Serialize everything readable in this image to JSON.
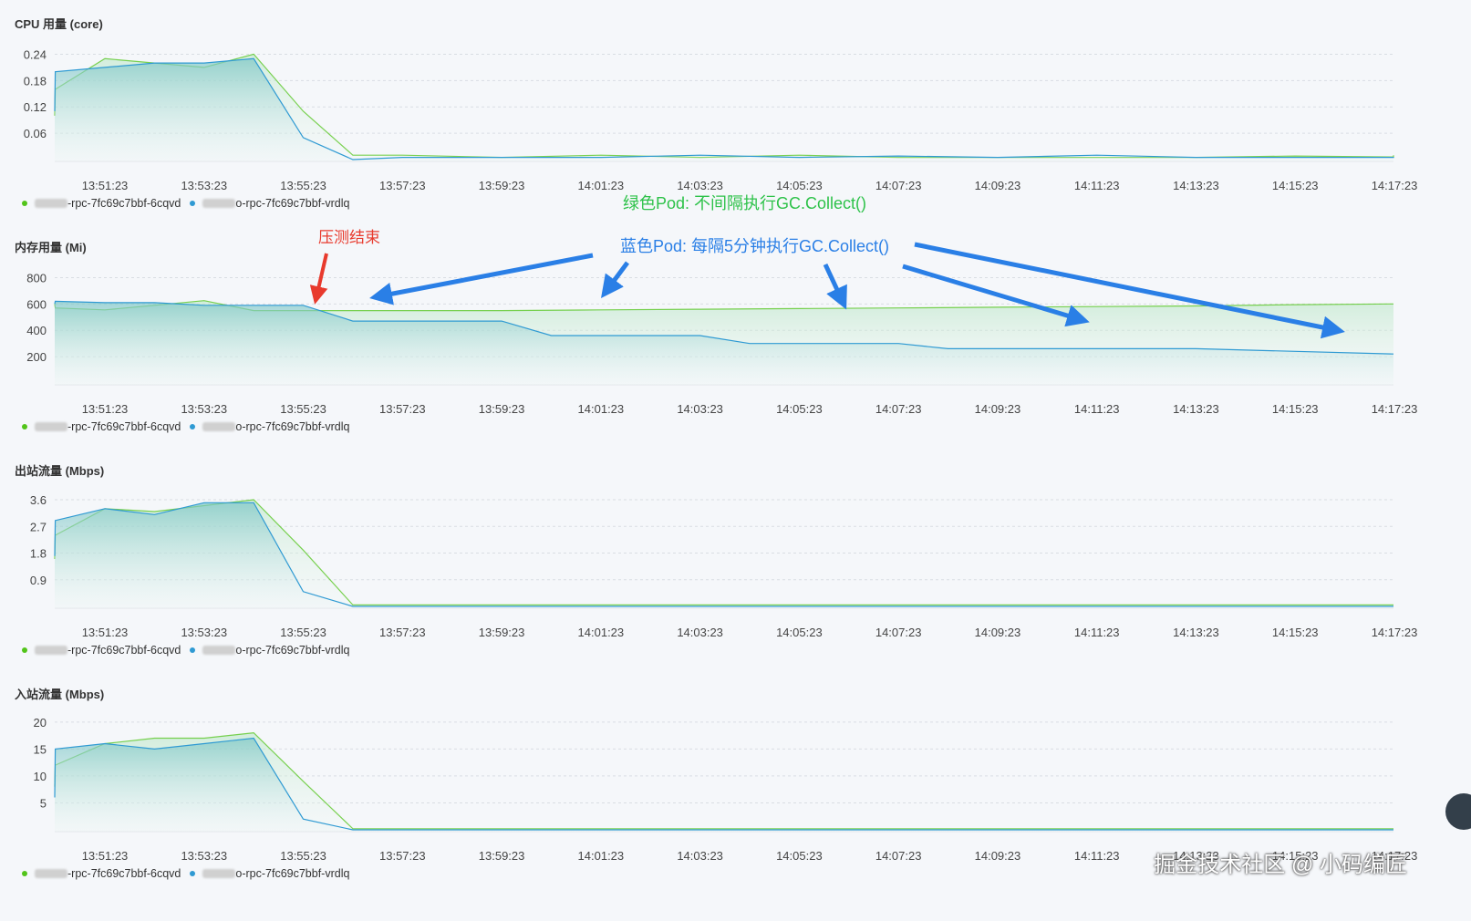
{
  "legend": {
    "series1": "-rpc-7fc69c7bbf-6cqvd",
    "series2": "o-rpc-7fc69c7bbf-vrdlq",
    "color1": "#52c41a",
    "color2": "#2f9ad3"
  },
  "annotations": {
    "green_label": "绿色Pod: 不间隔执行GC.Collect()",
    "blue_label": "蓝色Pod: 每隔5分钟执行GC.Collect()",
    "red_label": "压测结束",
    "green_color": "#2ec24a",
    "blue_color": "#2a7fe6",
    "red_color": "#e83a2d"
  },
  "watermark": "掘金技术社区 @ 小码编匠",
  "chart_data": [
    {
      "type": "area",
      "title": "CPU 用量 (core)",
      "x": [
        "13:51:23",
        "13:53:23",
        "13:55:23",
        "13:57:23",
        "13:59:23",
        "14:01:23",
        "14:03:23",
        "14:05:23",
        "14:07:23",
        "14:09:23",
        "14:11:23",
        "14:13:23",
        "14:15:23",
        "14:17:23"
      ],
      "yticks": [
        0.24,
        0.18,
        0.12,
        0.06
      ],
      "ylim": [
        0,
        0.27
      ],
      "grid": true,
      "series": [
        {
          "name": "-rpc-7fc69c7bbf-6cqvd",
          "points": [
            [
              -1.0,
              0.1
            ],
            [
              -0.5,
              0.16
            ],
            [
              0.0,
              0.23
            ],
            [
              0.5,
              0.22
            ],
            [
              1.0,
              0.21
            ],
            [
              1.5,
              0.24
            ],
            [
              2.0,
              0.11
            ],
            [
              2.5,
              0.01
            ],
            [
              3,
              0.01
            ],
            [
              4,
              0.005
            ],
            [
              5,
              0.01
            ],
            [
              6,
              0.005
            ],
            [
              7,
              0.01
            ],
            [
              8,
              0.005
            ],
            [
              9,
              0.005
            ],
            [
              10,
              0.005
            ],
            [
              11,
              0.005
            ],
            [
              12,
              0.008
            ],
            [
              13,
              0.006
            ],
            [
              13.5,
              0.01
            ]
          ]
        },
        {
          "name": "o-rpc-7fc69c7bbf-vrdlq",
          "points": [
            [
              -1.0,
              0.11
            ],
            [
              -0.5,
              0.2
            ],
            [
              0.0,
              0.21
            ],
            [
              0.5,
              0.22
            ],
            [
              1.0,
              0.22
            ],
            [
              1.5,
              0.23
            ],
            [
              2.0,
              0.05
            ],
            [
              2.5,
              0.0
            ],
            [
              3,
              0.005
            ],
            [
              4,
              0.005
            ],
            [
              5,
              0.005
            ],
            [
              6,
              0.01
            ],
            [
              7,
              0.005
            ],
            [
              8,
              0.008
            ],
            [
              9,
              0.005
            ],
            [
              10,
              0.01
            ],
            [
              11,
              0.005
            ],
            [
              12,
              0.005
            ],
            [
              13,
              0.005
            ],
            [
              13.5,
              0.006
            ]
          ]
        }
      ]
    },
    {
      "type": "area",
      "title": "内存用量 (Mi)",
      "x": [
        "13:51:23",
        "13:53:23",
        "13:55:23",
        "13:57:23",
        "13:59:23",
        "14:01:23",
        "14:03:23",
        "14:05:23",
        "14:07:23",
        "14:09:23",
        "14:11:23",
        "14:13:23",
        "14:15:23",
        "14:17:23"
      ],
      "yticks": [
        800,
        600,
        400,
        200
      ],
      "ylim": [
        0,
        900
      ],
      "grid": true,
      "series": [
        {
          "name": "-rpc-7fc69c7bbf-6cqvd",
          "points": [
            [
              -1.0,
              600
            ],
            [
              -0.5,
              570
            ],
            [
              0.0,
              555
            ],
            [
              0.5,
              590
            ],
            [
              1.0,
              625
            ],
            [
              1.5,
              550
            ],
            [
              2.0,
              550
            ],
            [
              2.5,
              550
            ],
            [
              3,
              550
            ],
            [
              4,
              550
            ],
            [
              5,
              555
            ],
            [
              6,
              560
            ],
            [
              7,
              565
            ],
            [
              8,
              570
            ],
            [
              9,
              575
            ],
            [
              10,
              580
            ],
            [
              11,
              585
            ],
            [
              12,
              595
            ],
            [
              13,
              600
            ],
            [
              13.5,
              600
            ]
          ]
        },
        {
          "name": "o-rpc-7fc69c7bbf-vrdlq",
          "points": [
            [
              -1.0,
              600
            ],
            [
              -0.5,
              620
            ],
            [
              0.0,
              610
            ],
            [
              0.5,
              610
            ],
            [
              1.0,
              590
            ],
            [
              1.5,
              590
            ],
            [
              2.0,
              590
            ],
            [
              2.5,
              470
            ],
            [
              3,
              470
            ],
            [
              4,
              470
            ],
            [
              4.5,
              360
            ],
            [
              5,
              360
            ],
            [
              6,
              360
            ],
            [
              6.5,
              300
            ],
            [
              7,
              300
            ],
            [
              8,
              300
            ],
            [
              8.5,
              260
            ],
            [
              9,
              260
            ],
            [
              10,
              260
            ],
            [
              11,
              260
            ],
            [
              13.5,
              220
            ]
          ]
        }
      ]
    },
    {
      "type": "area",
      "title": "出站流量 (Mbps)",
      "x": [
        "13:51:23",
        "13:53:23",
        "13:55:23",
        "13:57:23",
        "13:59:23",
        "14:01:23",
        "14:03:23",
        "14:05:23",
        "14:07:23",
        "14:09:23",
        "14:11:23",
        "14:13:23",
        "14:15:23",
        "14:17:23"
      ],
      "yticks": [
        3.6,
        2.7,
        1.8,
        0.9
      ],
      "ylim": [
        0,
        4.0
      ],
      "grid": true,
      "series": [
        {
          "name": "-rpc-7fc69c7bbf-6cqvd",
          "points": [
            [
              -1.0,
              1.6
            ],
            [
              -0.5,
              2.4
            ],
            [
              0.0,
              3.3
            ],
            [
              0.5,
              3.2
            ],
            [
              1.0,
              3.4
            ],
            [
              1.5,
              3.6
            ],
            [
              2.0,
              1.9
            ],
            [
              2.5,
              0.05
            ],
            [
              3,
              0.05
            ],
            [
              4,
              0.05
            ],
            [
              5,
              0.05
            ],
            [
              6,
              0.05
            ],
            [
              7,
              0.05
            ],
            [
              8,
              0.05
            ],
            [
              9,
              0.05
            ],
            [
              10,
              0.05
            ],
            [
              11,
              0.05
            ],
            [
              12,
              0.05
            ],
            [
              13,
              0.05
            ],
            [
              13.5,
              0.05
            ]
          ]
        },
        {
          "name": "o-rpc-7fc69c7bbf-vrdlq",
          "points": [
            [
              -1.0,
              1.7
            ],
            [
              -0.5,
              2.9
            ],
            [
              0.0,
              3.3
            ],
            [
              0.5,
              3.1
            ],
            [
              1.0,
              3.5
            ],
            [
              1.5,
              3.5
            ],
            [
              2.0,
              0.5
            ],
            [
              2.5,
              0.0
            ],
            [
              3,
              0.0
            ],
            [
              4,
              0.0
            ],
            [
              5,
              0.0
            ],
            [
              6,
              0.0
            ],
            [
              7,
              0.0
            ],
            [
              8,
              0.0
            ],
            [
              9,
              0.0
            ],
            [
              10,
              0.0
            ],
            [
              11,
              0.0
            ],
            [
              12,
              0.0
            ],
            [
              13,
              0.0
            ],
            [
              13.5,
              0.0
            ]
          ]
        }
      ]
    },
    {
      "type": "area",
      "title": "入站流量 (Mbps)",
      "x": [
        "13:51:23",
        "13:53:23",
        "13:55:23",
        "13:57:23",
        "13:59:23",
        "14:01:23",
        "14:03:23",
        "14:05:23",
        "14:07:23",
        "14:09:23",
        "14:11:23",
        "14:13:23",
        "14:15:23",
        "14:17:23"
      ],
      "yticks": [
        20,
        15,
        10,
        5
      ],
      "ylim": [
        0,
        22
      ],
      "grid": true,
      "series": [
        {
          "name": "-rpc-7fc69c7bbf-6cqvd",
          "points": [
            [
              -1.0,
              8
            ],
            [
              -0.5,
              12
            ],
            [
              0.0,
              16
            ],
            [
              0.5,
              17
            ],
            [
              1.0,
              17
            ],
            [
              1.5,
              18
            ],
            [
              2.0,
              9
            ],
            [
              2.5,
              0.2
            ],
            [
              3,
              0.2
            ],
            [
              4,
              0.2
            ],
            [
              5,
              0.2
            ],
            [
              6,
              0.2
            ],
            [
              7,
              0.2
            ],
            [
              8,
              0.2
            ],
            [
              9,
              0.2
            ],
            [
              10,
              0.2
            ],
            [
              11,
              0.2
            ],
            [
              12,
              0.2
            ],
            [
              13,
              0.2
            ],
            [
              13.5,
              0.2
            ]
          ]
        },
        {
          "name": "o-rpc-7fc69c7bbf-vrdlq",
          "points": [
            [
              -1.0,
              6
            ],
            [
              -0.5,
              15
            ],
            [
              0.0,
              16
            ],
            [
              0.5,
              15
            ],
            [
              1.0,
              16
            ],
            [
              1.5,
              17
            ],
            [
              2.0,
              2
            ],
            [
              2.5,
              0
            ],
            [
              3,
              0
            ],
            [
              4,
              0
            ],
            [
              5,
              0
            ],
            [
              6,
              0
            ],
            [
              7,
              0
            ],
            [
              8,
              0
            ],
            [
              9,
              0
            ],
            [
              10,
              0
            ],
            [
              11,
              0
            ],
            [
              12,
              0
            ],
            [
              13,
              0
            ],
            [
              13.5,
              0
            ]
          ]
        }
      ]
    }
  ]
}
